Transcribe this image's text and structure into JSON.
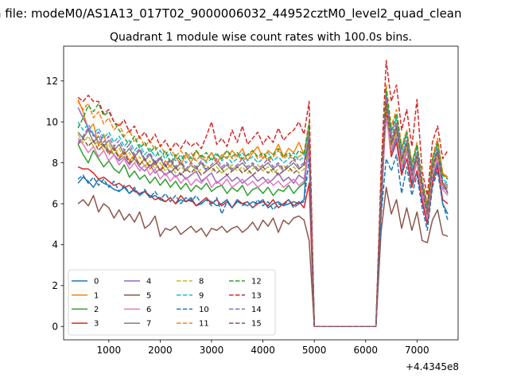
{
  "figure": {
    "suptitle": "n file: modeM0/AS1A13_017T02_9000006032_44952cztM0_level2_quad_clean"
  },
  "chart_data": {
    "type": "line",
    "title": "Quadrant 1 module wise count rates with 100.0s bins.",
    "xlabel": "",
    "ylabel": "",
    "x_offset_label": "+4.4345e8",
    "xlim": [
      120,
      7800
    ],
    "ylim": [
      -0.65,
      13.7
    ],
    "xticks": [
      1000,
      2000,
      3000,
      4000,
      5000,
      6000,
      7000
    ],
    "yticks": [
      0,
      2,
      4,
      6,
      8,
      10,
      12
    ],
    "grid": false,
    "legend": {
      "placement": "lower-left",
      "columns": 4
    },
    "x": [
      400,
      500,
      600,
      700,
      800,
      900,
      1000,
      1100,
      1200,
      1300,
      1400,
      1500,
      1600,
      1700,
      1800,
      1900,
      2000,
      2100,
      2200,
      2300,
      2400,
      2500,
      2600,
      2700,
      2800,
      2900,
      3000,
      3100,
      3200,
      3300,
      3400,
      3500,
      3600,
      3700,
      3800,
      3900,
      4000,
      4100,
      4200,
      4300,
      4400,
      4500,
      4600,
      4700,
      4800,
      4900,
      5000,
      5100,
      6200,
      6300,
      6400,
      6500,
      6600,
      6700,
      6800,
      6900,
      7000,
      7100,
      7200,
      7300,
      7400,
      7500,
      7600
    ],
    "series": [
      {
        "name": "0",
        "color": "#1f77b4",
        "dash": "solid",
        "values": [
          7.0,
          7.3,
          7.1,
          6.8,
          7.2,
          7.0,
          6.9,
          6.7,
          6.6,
          6.8,
          6.5,
          6.7,
          6.4,
          6.6,
          6.3,
          6.4,
          6.2,
          6.1,
          6.3,
          6.0,
          6.2,
          6.1,
          6.3,
          5.9,
          6.0,
          6.2,
          6.1,
          5.9,
          6.0,
          6.2,
          5.8,
          6.1,
          6.0,
          5.9,
          6.1,
          6.0,
          6.2,
          5.8,
          6.0,
          6.1,
          5.9,
          6.0,
          6.1,
          6.0,
          6.2,
          9.8,
          0.0,
          0.0,
          0.0,
          5.5,
          10.8,
          8.5,
          9.2,
          7.5,
          8.6,
          7.0,
          8.1,
          6.2,
          5.0,
          7.2,
          8.0,
          6.0,
          5.5
        ]
      },
      {
        "name": "1",
        "color": "#ff7f0e",
        "dash": "solid",
        "values": [
          11.1,
          10.5,
          9.6,
          9.9,
          8.8,
          9.4,
          8.5,
          8.8,
          8.3,
          8.6,
          8.1,
          8.4,
          7.9,
          8.2,
          7.7,
          8.0,
          7.6,
          8.1,
          7.8,
          8.3,
          7.9,
          8.4,
          8.0,
          8.6,
          8.2,
          8.1,
          8.5,
          8.0,
          8.4,
          8.2,
          8.6,
          8.3,
          8.7,
          8.1,
          8.5,
          8.8,
          8.2,
          8.6,
          8.4,
          8.9,
          8.3,
          8.7,
          8.5,
          9.0,
          8.4,
          9.6,
          0.0,
          0.0,
          0.0,
          6.5,
          11.3,
          9.5,
          10.2,
          8.7,
          9.4,
          8.0,
          8.8,
          7.0,
          6.0,
          8.2,
          9.0,
          7.5,
          7.2
        ]
      },
      {
        "name": "2",
        "color": "#2ca02c",
        "dash": "solid",
        "values": [
          8.9,
          8.4,
          8.0,
          8.6,
          8.2,
          7.8,
          8.1,
          7.7,
          7.5,
          7.9,
          7.3,
          7.6,
          7.2,
          7.4,
          7.0,
          7.3,
          6.9,
          7.2,
          6.8,
          7.1,
          6.7,
          7.0,
          6.6,
          6.9,
          6.7,
          7.0,
          6.6,
          6.8,
          6.9,
          6.5,
          6.8,
          6.6,
          6.9,
          6.4,
          6.7,
          6.8,
          6.5,
          6.8,
          6.4,
          6.7,
          6.6,
          6.9,
          6.5,
          6.8,
          7.0,
          9.0,
          0.0,
          0.0,
          0.0,
          6.0,
          11.5,
          9.0,
          9.8,
          8.2,
          9.0,
          7.6,
          8.4,
          6.8,
          5.6,
          7.7,
          8.6,
          7.0,
          6.5
        ]
      },
      {
        "name": "3",
        "color": "#d62728",
        "dash": "solid",
        "values": [
          7.8,
          7.7,
          7.7,
          7.5,
          7.2,
          7.3,
          7.1,
          6.9,
          7.0,
          6.8,
          6.9,
          6.6,
          6.5,
          6.6,
          6.4,
          6.2,
          6.3,
          6.1,
          6.3,
          6.0,
          6.4,
          6.1,
          6.2,
          5.9,
          6.1,
          6.3,
          6.0,
          6.2,
          5.9,
          6.1,
          5.8,
          6.2,
          6.0,
          6.1,
          5.8,
          6.0,
          6.1,
          5.9,
          6.2,
          5.8,
          6.0,
          6.2,
          5.9,
          6.1,
          5.8,
          7.0,
          0.0,
          0.0,
          0.0,
          6.2,
          10.5,
          8.3,
          9.0,
          7.4,
          8.2,
          6.8,
          7.6,
          6.1,
          5.0,
          7.0,
          7.8,
          6.2,
          6.0
        ]
      },
      {
        "name": "4",
        "color": "#9467bd",
        "dash": "solid",
        "values": [
          10.7,
          10.2,
          9.7,
          9.4,
          9.0,
          8.8,
          8.6,
          8.4,
          8.1,
          8.3,
          7.9,
          8.2,
          7.8,
          7.6,
          7.9,
          7.5,
          7.7,
          7.4,
          7.6,
          7.3,
          7.5,
          7.2,
          7.4,
          7.6,
          7.1,
          7.3,
          7.5,
          7.0,
          7.2,
          7.4,
          7.1,
          7.3,
          7.0,
          7.2,
          7.4,
          7.1,
          7.3,
          7.0,
          7.2,
          7.5,
          7.1,
          7.3,
          7.0,
          7.4,
          7.2,
          8.9,
          0.0,
          0.0,
          0.0,
          6.6,
          11.0,
          8.8,
          9.6,
          8.0,
          8.8,
          7.3,
          8.2,
          6.6,
          5.4,
          7.6,
          8.4,
          6.8,
          6.6
        ]
      },
      {
        "name": "5",
        "color": "#8c564b",
        "dash": "solid",
        "values": [
          6.0,
          6.2,
          5.9,
          6.4,
          5.6,
          6.0,
          5.8,
          5.3,
          5.7,
          5.2,
          5.5,
          5.1,
          5.6,
          4.8,
          5.0,
          5.4,
          4.4,
          4.8,
          4.7,
          4.9,
          4.5,
          4.7,
          4.9,
          4.6,
          4.8,
          4.4,
          4.8,
          4.7,
          4.9,
          4.6,
          4.8,
          4.9,
          4.6,
          4.8,
          5.1,
          4.7,
          5.2,
          4.9,
          5.3,
          4.6,
          5.2,
          5.0,
          5.3,
          5.4,
          5.2,
          4.2,
          0.0,
          0.0,
          0.0,
          4.6,
          6.8,
          5.5,
          6.2,
          4.8,
          5.8,
          4.7,
          5.6,
          4.2,
          4.1,
          5.2,
          5.7,
          4.5,
          4.4
        ]
      },
      {
        "name": "6",
        "color": "#e377c2",
        "dash": "solid",
        "values": [
          9.2,
          8.9,
          8.5,
          8.8,
          8.3,
          8.6,
          8.1,
          8.4,
          7.9,
          8.2,
          7.7,
          8.0,
          7.6,
          7.9,
          7.4,
          7.7,
          7.2,
          7.5,
          7.1,
          7.4,
          7.0,
          7.3,
          6.9,
          7.2,
          7.0,
          7.3,
          6.8,
          7.1,
          6.9,
          7.2,
          6.8,
          7.0,
          7.2,
          6.9,
          7.1,
          6.8,
          7.0,
          7.2,
          6.9,
          7.1,
          6.8,
          7.0,
          7.2,
          6.9,
          7.1,
          8.6,
          0.0,
          0.0,
          0.0,
          6.3,
          10.2,
          8.6,
          9.4,
          7.8,
          8.6,
          7.2,
          8.0,
          6.4,
          5.3,
          7.4,
          8.2,
          6.7,
          6.4
        ]
      },
      {
        "name": "7",
        "color": "#7f7f7f",
        "dash": "solid",
        "values": [
          9.5,
          9.2,
          9.6,
          9.0,
          9.3,
          8.8,
          9.1,
          8.6,
          8.9,
          8.4,
          8.7,
          8.3,
          8.6,
          8.1,
          8.4,
          7.9,
          8.2,
          7.8,
          8.1,
          7.7,
          8.0,
          7.6,
          7.9,
          7.7,
          8.0,
          7.6,
          7.8,
          8.0,
          7.7,
          7.9,
          7.6,
          7.8,
          8.0,
          7.7,
          7.9,
          7.6,
          7.8,
          8.0,
          7.7,
          7.9,
          7.6,
          7.8,
          8.0,
          7.7,
          7.9,
          9.3,
          0.0,
          0.0,
          0.0,
          6.8,
          11.0,
          9.0,
          9.8,
          8.2,
          9.0,
          7.5,
          8.4,
          6.8,
          5.6,
          7.8,
          8.6,
          7.0,
          6.8
        ]
      },
      {
        "name": "8",
        "color": "#bcbd22",
        "dash": "dashed",
        "values": [
          9.4,
          9.0,
          9.3,
          8.8,
          9.1,
          8.6,
          8.9,
          8.4,
          8.7,
          8.2,
          8.5,
          8.0,
          8.3,
          7.8,
          8.1,
          7.7,
          8.0,
          7.6,
          7.9,
          7.5,
          7.8,
          7.6,
          7.9,
          7.5,
          7.7,
          7.9,
          7.6,
          7.8,
          7.5,
          7.7,
          7.9,
          7.6,
          7.8,
          7.5,
          7.7,
          7.9,
          7.6,
          7.8,
          7.5,
          7.7,
          7.9,
          7.6,
          7.8,
          7.5,
          7.7,
          9.0,
          0.0,
          0.0,
          0.0,
          6.5,
          10.8,
          8.8,
          9.5,
          8.0,
          8.8,
          7.4,
          8.2,
          6.7,
          5.5,
          7.6,
          8.4,
          6.9,
          6.7
        ]
      },
      {
        "name": "9",
        "color": "#17becf",
        "dash": "dashed",
        "values": [
          10.0,
          9.6,
          9.9,
          9.4,
          9.7,
          9.2,
          9.5,
          9.0,
          9.3,
          8.8,
          9.1,
          8.6,
          8.9,
          8.4,
          8.7,
          8.3,
          8.6,
          8.2,
          8.5,
          8.1,
          8.4,
          8.0,
          8.3,
          8.1,
          8.4,
          8.0,
          8.2,
          8.5,
          8.1,
          8.3,
          8.0,
          8.2,
          8.5,
          8.1,
          8.3,
          8.0,
          8.2,
          8.5,
          8.1,
          8.3,
          8.0,
          8.2,
          8.5,
          8.1,
          8.3,
          9.8,
          0.0,
          0.0,
          0.0,
          7.0,
          11.4,
          9.4,
          10.2,
          8.5,
          9.3,
          7.8,
          8.7,
          7.0,
          5.8,
          8.0,
          8.9,
          7.2,
          7.0
        ]
      },
      {
        "name": "10",
        "color": "#1f77b4",
        "dash": "dashed",
        "values": [
          7.2,
          7.4,
          7.0,
          7.3,
          6.9,
          7.2,
          6.8,
          7.1,
          6.6,
          6.9,
          6.5,
          6.8,
          6.4,
          6.7,
          6.3,
          6.6,
          6.2,
          6.5,
          6.1,
          6.4,
          6.0,
          6.3,
          6.1,
          6.4,
          6.0,
          6.2,
          5.9,
          6.3,
          5.5,
          6.1,
          5.8,
          6.2,
          5.9,
          6.1,
          5.8,
          6.2,
          5.9,
          6.1,
          5.7,
          6.0,
          5.9,
          6.2,
          5.8,
          6.0,
          6.1,
          8.2,
          0.0,
          0.0,
          0.0,
          5.4,
          8.2,
          7.6,
          8.4,
          6.5,
          7.8,
          6.4,
          7.4,
          5.8,
          4.7,
          6.8,
          7.6,
          6.0,
          5.2
        ]
      },
      {
        "name": "11",
        "color": "#ff7f0e",
        "dash": "dashed",
        "values": [
          11.0,
          10.6,
          10.9,
          10.2,
          10.5,
          9.9,
          10.2,
          9.6,
          9.9,
          9.3,
          9.6,
          9.0,
          9.3,
          8.8,
          9.1,
          8.6,
          8.9,
          8.4,
          8.7,
          8.3,
          8.6,
          8.2,
          8.5,
          8.1,
          8.4,
          8.2,
          8.5,
          8.1,
          8.3,
          8.6,
          8.2,
          8.4,
          8.1,
          8.3,
          8.6,
          8.2,
          8.4,
          8.1,
          8.3,
          8.6,
          8.2,
          8.4,
          8.1,
          8.3,
          8.5,
          10.0,
          0.0,
          0.0,
          0.0,
          7.2,
          11.8,
          9.8,
          10.6,
          8.8,
          9.6,
          8.0,
          9.0,
          7.2,
          6.0,
          8.3,
          9.2,
          7.5,
          7.3
        ]
      },
      {
        "name": "12",
        "color": "#2ca02c",
        "dash": "dashed",
        "values": [
          9.7,
          10.2,
          10.8,
          10.5,
          10.9,
          10.3,
          10.5,
          10.0,
          9.6,
          9.2,
          8.9,
          9.3,
          8.7,
          9.0,
          8.5,
          8.8,
          8.2,
          8.6,
          8.0,
          8.4,
          8.1,
          8.5,
          8.2,
          8.6,
          8.3,
          8.5,
          8.1,
          8.4,
          8.2,
          8.6,
          8.3,
          8.5,
          8.2,
          8.4,
          8.6,
          8.3,
          8.5,
          8.2,
          8.4,
          8.7,
          8.3,
          8.5,
          8.2,
          8.6,
          8.4,
          9.9,
          0.0,
          0.0,
          0.0,
          7.1,
          11.6,
          9.6,
          10.4,
          8.7,
          9.5,
          7.9,
          8.9,
          7.1,
          5.9,
          8.1,
          9.0,
          7.4,
          7.2
        ]
      },
      {
        "name": "13",
        "color": "#d62728",
        "dash": "dashed",
        "values": [
          11.2,
          11.0,
          11.3,
          11.0,
          11.0,
          10.4,
          10.6,
          10.0,
          9.8,
          10.1,
          9.5,
          9.8,
          9.2,
          9.5,
          9.0,
          9.4,
          8.8,
          9.1,
          8.6,
          9.0,
          8.7,
          9.1,
          8.8,
          9.0,
          8.7,
          9.3,
          10.0,
          8.9,
          9.2,
          8.8,
          9.6,
          9.0,
          9.8,
          8.9,
          9.2,
          9.5,
          8.9,
          9.3,
          9.0,
          9.7,
          9.1,
          9.4,
          9.6,
          10.0,
          9.4,
          11.0,
          0.0,
          0.0,
          0.0,
          7.6,
          13.0,
          11.0,
          11.8,
          9.6,
          10.6,
          8.8,
          11.1,
          7.6,
          6.4,
          9.0,
          9.8,
          8.2,
          8.6
        ]
      },
      {
        "name": "14",
        "color": "#9467bd",
        "dash": "dashed",
        "values": [
          9.0,
          9.3,
          9.7,
          9.3,
          9.5,
          9.0,
          9.3,
          8.8,
          9.1,
          8.6,
          8.9,
          8.4,
          8.7,
          8.2,
          8.5,
          8.0,
          8.3,
          7.9,
          8.2,
          7.8,
          8.1,
          7.7,
          8.0,
          7.8,
          8.1,
          7.7,
          7.9,
          8.2,
          7.8,
          8.0,
          7.7,
          7.9,
          8.2,
          7.8,
          8.0,
          7.7,
          7.9,
          8.2,
          7.8,
          8.0,
          7.7,
          7.9,
          8.2,
          7.8,
          8.0,
          9.3,
          0.0,
          0.0,
          0.0,
          6.6,
          11.2,
          9.2,
          10.0,
          8.3,
          9.1,
          7.6,
          8.5,
          6.9,
          5.7,
          7.9,
          8.7,
          7.1,
          6.9
        ]
      },
      {
        "name": "15",
        "color": "#8c564b",
        "dash": "dashed",
        "values": [
          8.9,
          9.2,
          8.8,
          9.1,
          8.6,
          8.9,
          8.4,
          8.7,
          8.2,
          8.5,
          8.0,
          8.3,
          7.9,
          8.2,
          7.8,
          8.1,
          7.6,
          7.9,
          7.5,
          7.8,
          7.4,
          7.7,
          7.5,
          7.8,
          7.4,
          7.6,
          7.8,
          7.5,
          7.7,
          7.4,
          7.6,
          7.8,
          7.5,
          7.7,
          7.4,
          7.6,
          7.8,
          7.5,
          7.7,
          7.4,
          7.6,
          7.8,
          7.5,
          7.7,
          7.9,
          9.1,
          0.0,
          0.0,
          0.0,
          6.4,
          10.9,
          8.9,
          9.7,
          8.1,
          8.9,
          7.4,
          8.3,
          6.7,
          5.5,
          7.7,
          8.5,
          6.9,
          6.7
        ]
      }
    ]
  }
}
